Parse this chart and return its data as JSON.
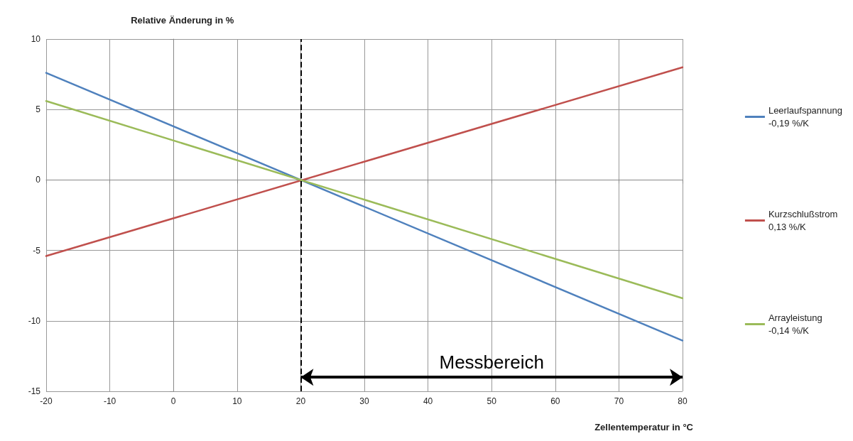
{
  "chart_data": {
    "type": "line",
    "ylabel": "Relative Änderung in %",
    "xlabel": "Zellentemperatur in °C",
    "x": [
      -20,
      80
    ],
    "series": [
      {
        "name": "Leerlaufspannung\n-0,19 %/K",
        "color": "#4f81bd",
        "values": [
          7.6,
          -11.4
        ]
      },
      {
        "name": "Kurzschlußstrom\n0,13 %/K",
        "color": "#c0504d",
        "values": [
          -5.4,
          8.0
        ]
      },
      {
        "name": "Arrayleistung\n-0,14 %/K",
        "color": "#9bbb59",
        "values": [
          5.6,
          -8.4
        ]
      }
    ],
    "xlim": [
      -20,
      80
    ],
    "xticks": [
      -20,
      -10,
      0,
      10,
      20,
      30,
      40,
      50,
      60,
      70,
      80
    ],
    "ylim": [
      -15,
      10
    ],
    "yticks": [
      -15,
      -10,
      -5,
      0,
      5,
      10
    ],
    "ref_lines": [
      {
        "axis": "x",
        "value": 20,
        "color": "#000000",
        "line_style": "dashed"
      }
    ],
    "annotations": [
      "Messbereich"
    ],
    "grid": true,
    "legend": "right",
    "marker": "none",
    "line_style": "solid"
  }
}
